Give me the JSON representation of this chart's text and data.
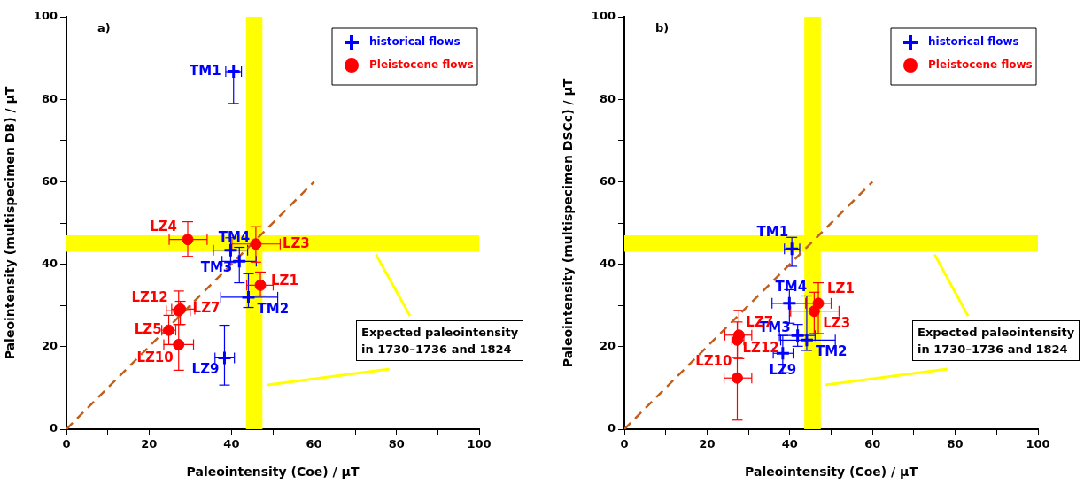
{
  "chart_data": [
    {
      "type": "scatter",
      "title": "a)",
      "xlabel": "Paleointensity (Coe) / μT",
      "ylabel": "Paleointensity (multispecimen DB) / μT",
      "xlim": [
        0,
        100
      ],
      "ylim": [
        0,
        100
      ],
      "xticks": [
        0,
        {
          "value": 10,
          "label": null
        },
        20,
        {
          "value": 30,
          "label": null
        },
        40,
        {
          "value": 50,
          "label": null
        },
        60,
        {
          "value": 70,
          "label": null
        },
        80,
        {
          "value": 90,
          "label": null
        },
        100
      ],
      "yticks": [
        0,
        {
          "value": 10,
          "label": null
        },
        20,
        {
          "value": 30,
          "label": null
        },
        40,
        {
          "value": 50,
          "label": null
        },
        60,
        {
          "value": 70,
          "label": null
        },
        80,
        {
          "value": 90,
          "label": null
        },
        100
      ],
      "grid": false,
      "legend": "top right",
      "bands": [
        {
          "axis": "x",
          "from": 43.5,
          "to": 47.5,
          "color": "#ffff00"
        },
        {
          "axis": "y",
          "from": 43,
          "to": 47,
          "color": "#ffff00"
        }
      ],
      "annotations": [
        {
          "text": "Expected paleointensity\nin 1730–1736 and 1824",
          "x": 75,
          "y": 43
        }
      ],
      "series": [
        {
          "name": "historical flows",
          "color": "#0000ff",
          "marker": "cross",
          "x": [
            40.5,
            39.8,
            41.9,
            44.1,
            38.3
          ],
          "values": [
            86.7,
            43.4,
            40.7,
            32,
            17.3
          ],
          "value_labels": [
            "TM1",
            "TM4",
            "TM3",
            "TM2",
            "LZ9"
          ],
          "xerrors": [
            [
              38.6,
              42.4
            ],
            [
              35.6,
              43.9
            ],
            [
              37.7,
              46
            ],
            [
              37.4,
              51.2
            ],
            [
              36,
              40.7
            ]
          ],
          "errors": [
            [
              79,
              87
            ],
            [
              40.4,
              46.4
            ],
            [
              35.5,
              44.1
            ],
            [
              29.5,
              37.7
            ],
            [
              10.7,
              25.2
            ]
          ]
        },
        {
          "name": "Pleistocene flows",
          "color": "#ff0000",
          "marker": "circle",
          "x": [
            29.4,
            45.9,
            47,
            27.2,
            27.6,
            24.8,
            27.2
          ],
          "values": [
            46,
            44.9,
            34.9,
            28.7,
            29.1,
            24,
            20.5
          ],
          "value_labels": [
            "LZ4",
            "LZ3",
            "LZ1",
            "LZ12",
            "LZ7",
            "LZ5",
            "LZ10"
          ],
          "xerrors": [
            [
              24.9,
              34.1
            ],
            [
              40.1,
              51.8
            ],
            [
              43.7,
              50.1
            ],
            [
              24.2,
              30
            ],
            [
              25.5,
              31.1
            ],
            [
              23.1,
              26.5
            ],
            [
              23.6,
              30.8
            ]
          ],
          "errors": [
            [
              41.9,
              50.3
            ],
            [
              40.5,
              49.1
            ],
            [
              32.3,
              38.1
            ],
            [
              25.4,
              33.5
            ],
            [
              25.4,
              31
            ],
            [
              20.5,
              27.6
            ],
            [
              14.3,
              25.4
            ]
          ]
        },
        {
          "type": "line",
          "color": "#c0601e",
          "line_style": "dashed",
          "x": [
            0,
            60
          ],
          "values": [
            0,
            60
          ]
        }
      ]
    },
    {
      "type": "scatter",
      "title": "b)",
      "xlabel": "Paleointensity (Coe) / μT",
      "ylabel": "Paleointensity (multispecimen DSCc) / μT",
      "xlim": [
        0,
        100
      ],
      "ylim": [
        0,
        100
      ],
      "xticks": [
        0,
        {
          "value": 10,
          "label": null
        },
        20,
        {
          "value": 30,
          "label": null
        },
        40,
        {
          "value": 50,
          "label": null
        },
        60,
        {
          "value": 70,
          "label": null
        },
        80,
        {
          "value": 90,
          "label": null
        },
        100
      ],
      "yticks": [
        0,
        {
          "value": 10,
          "label": null
        },
        20,
        {
          "value": 30,
          "label": null
        },
        40,
        {
          "value": 50,
          "label": null
        },
        60,
        {
          "value": 70,
          "label": null
        },
        80,
        {
          "value": 90,
          "label": null
        },
        100
      ],
      "grid": false,
      "legend": "top right",
      "bands": [
        {
          "axis": "x",
          "from": 43.5,
          "to": 47.5,
          "color": "#ffff00"
        },
        {
          "axis": "y",
          "from": 43,
          "to": 47,
          "color": "#ffff00"
        }
      ],
      "annotations": [
        {
          "text": "Expected paleointensity\nin 1730–1736 and 1824",
          "x": 75,
          "y": 43
        }
      ],
      "series": [
        {
          "name": "historical flows",
          "color": "#0000ff",
          "marker": "cross",
          "x": [
            40.5,
            39.9,
            41.9,
            44.1,
            38.3
          ],
          "values": [
            43.7,
            30.5,
            22.7,
            21.6,
            18.4
          ],
          "value_labels": [
            "TM1",
            "TM4",
            "TM3",
            "TM2",
            "LZ9"
          ],
          "xerrors": [
            [
              38.7,
              42.4
            ],
            [
              35.7,
              43.9
            ],
            [
              37.5,
              46.1
            ],
            [
              37.8,
              51
            ],
            [
              36,
              40.8
            ]
          ],
          "errors": [
            [
              39.5,
              46.5
            ],
            [
              25.7,
              33.8
            ],
            [
              20.1,
              25.4
            ],
            [
              19.1,
              32.3
            ],
            [
              13.7,
              22.7
            ]
          ]
        },
        {
          "name": "Pleistocene flows",
          "color": "#ff0000",
          "marker": "circle",
          "x": [
            46.9,
            45.9,
            27.7,
            27.3,
            27.3
          ],
          "values": [
            30.5,
            28.6,
            22.8,
            21.6,
            12.4
          ],
          "value_labels": [
            "LZ1",
            "LZ3",
            "LZ7",
            "LZ12",
            "LZ10"
          ],
          "xerrors": [
            [
              43.9,
              50
            ],
            [
              40.2,
              51.9
            ],
            [
              24.3,
              30.8
            ],
            [
              26,
              28.9
            ],
            [
              24.1,
              30.8
            ]
          ],
          "errors": [
            [
              23.2,
              35.5
            ],
            [
              23.2,
              33.2
            ],
            [
              17.1,
              28.8
            ],
            [
              17.4,
              26
            ],
            [
              2.2,
              17.4
            ]
          ]
        },
        {
          "type": "line",
          "color": "#c0601e",
          "line_style": "dashed",
          "x": [
            0,
            60
          ],
          "values": [
            0,
            60
          ]
        }
      ]
    }
  ]
}
